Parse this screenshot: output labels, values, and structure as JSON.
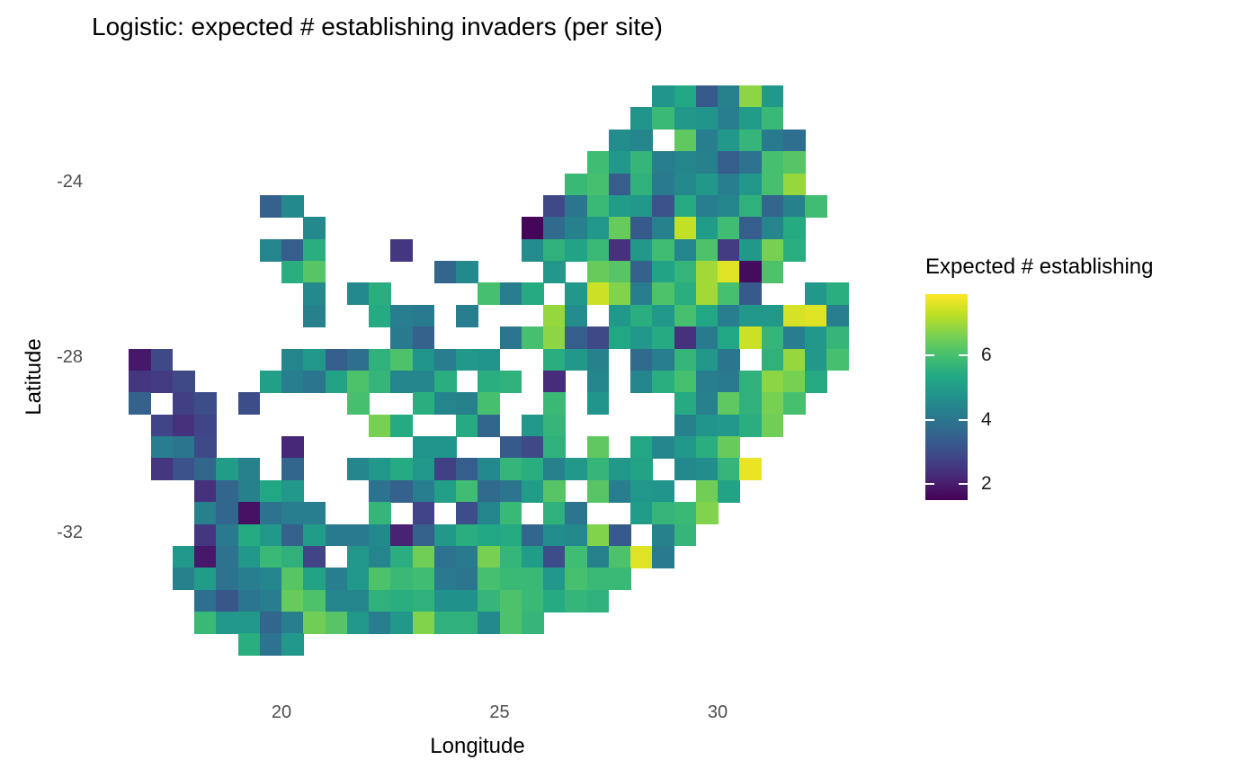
{
  "colors": {
    "background": "#ffffff",
    "title_text": "#000000",
    "axis_title_text": "#000000",
    "tick_text": "#4d4d4d",
    "legend_text": "#1a1a1a"
  },
  "chart_data": {
    "type": "heatmap",
    "title": "Logistic: expected # establishing invaders (per site)",
    "xlabel": "Longitude",
    "ylabel": "Latitude",
    "x_ticks": [
      20,
      25,
      30
    ],
    "y_ticks": [
      -24,
      -28,
      -32
    ],
    "x_range": [
      16.0,
      33.5
    ],
    "y_range": [
      -35.0,
      -21.8
    ],
    "grid": {
      "lon_left": 16.0,
      "lat_top": -21.8,
      "cell_deg": 0.5,
      "ncols": 34,
      "nrows": 26
    },
    "legend": {
      "title": "Expected # establishing",
      "ticks": [
        2,
        4,
        6
      ],
      "domain": [
        1.5,
        7.9
      ],
      "position": "right"
    },
    "colormap": {
      "name": "viridis",
      "stops": [
        "#440154",
        "#482475",
        "#414487",
        "#355f8d",
        "#2a788e",
        "#21918c",
        "#22a884",
        "#44bf70",
        "#7ad151",
        "#bddf26",
        "#fde725"
      ]
    },
    "cells": [
      [
        null,
        null,
        null,
        null,
        null,
        null,
        null,
        null,
        null,
        null,
        null,
        null,
        null,
        null,
        null,
        null,
        null,
        null,
        null,
        null,
        null,
        null,
        null,
        null,
        null,
        4.8,
        5.3,
        3.3,
        4.3,
        6.8,
        4.9,
        null,
        null,
        null
      ],
      [
        null,
        null,
        null,
        null,
        null,
        null,
        null,
        null,
        null,
        null,
        null,
        null,
        null,
        null,
        null,
        null,
        null,
        null,
        null,
        null,
        null,
        null,
        null,
        null,
        4.8,
        5.8,
        4.9,
        4.8,
        4.2,
        5.0,
        5.8,
        null,
        null,
        null
      ],
      [
        null,
        null,
        null,
        null,
        null,
        null,
        null,
        null,
        null,
        null,
        null,
        null,
        null,
        null,
        null,
        null,
        null,
        null,
        null,
        null,
        null,
        null,
        null,
        4.6,
        4.4,
        null,
        6.3,
        4.2,
        4.9,
        5.7,
        4.1,
        3.8,
        null,
        null
      ],
      [
        null,
        null,
        null,
        null,
        null,
        null,
        null,
        null,
        null,
        null,
        null,
        null,
        null,
        null,
        null,
        null,
        null,
        null,
        null,
        null,
        null,
        null,
        5.9,
        4.9,
        5.7,
        4.2,
        4.4,
        4.3,
        3.4,
        3.9,
        6.0,
        6.2,
        null,
        null
      ],
      [
        null,
        null,
        null,
        null,
        null,
        null,
        null,
        null,
        null,
        null,
        null,
        null,
        null,
        null,
        null,
        null,
        null,
        null,
        null,
        null,
        null,
        5.8,
        6.0,
        3.4,
        5.6,
        4.1,
        4.5,
        4.9,
        4.2,
        4.9,
        6.0,
        6.9,
        null,
        null
      ],
      [
        null,
        null,
        null,
        null,
        null,
        null,
        null,
        3.5,
        4.5,
        null,
        null,
        null,
        null,
        null,
        null,
        null,
        null,
        null,
        null,
        null,
        2.9,
        4.0,
        5.8,
        5.0,
        4.9,
        3.1,
        5.4,
        4.2,
        4.4,
        5.6,
        3.6,
        4.3,
        5.9,
        null
      ],
      [
        null,
        null,
        null,
        null,
        null,
        null,
        null,
        null,
        null,
        4.5,
        null,
        null,
        null,
        null,
        null,
        null,
        null,
        null,
        null,
        1.6,
        3.7,
        4.3,
        4.9,
        6.4,
        3.3,
        4.3,
        7.3,
        5.0,
        5.9,
        3.4,
        4.4,
        5.4,
        null,
        null
      ],
      [
        null,
        null,
        null,
        null,
        null,
        null,
        null,
        4.4,
        3.4,
        5.5,
        null,
        null,
        null,
        2.5,
        null,
        null,
        null,
        null,
        null,
        4.6,
        5.6,
        5.2,
        5.8,
        2.4,
        4.9,
        5.9,
        4.4,
        6.1,
        2.6,
        4.9,
        6.6,
        5.5,
        null,
        null
      ],
      [
        null,
        null,
        null,
        null,
        null,
        null,
        null,
        null,
        5.5,
        6.2,
        null,
        null,
        null,
        null,
        null,
        3.6,
        4.5,
        null,
        null,
        null,
        4.9,
        null,
        6.4,
        6.2,
        3.5,
        5.2,
        5.7,
        7.0,
        7.6,
        1.7,
        6.1,
        null,
        null,
        null
      ],
      [
        null,
        null,
        null,
        null,
        null,
        null,
        null,
        null,
        null,
        4.5,
        null,
        4.5,
        5.5,
        null,
        null,
        null,
        null,
        6.0,
        4.2,
        5.4,
        null,
        4.9,
        7.4,
        6.7,
        4.2,
        6.1,
        5.5,
        7.0,
        6.0,
        3.3,
        null,
        null,
        4.9,
        5.5
      ],
      [
        null,
        null,
        null,
        null,
        null,
        null,
        null,
        null,
        null,
        4.3,
        null,
        null,
        5.4,
        4.2,
        4.1,
        null,
        4.2,
        null,
        null,
        null,
        6.9,
        4.6,
        null,
        4.9,
        5.5,
        4.9,
        6.0,
        5.3,
        4.2,
        4.9,
        4.9,
        7.5,
        7.6,
        4.2
      ],
      [
        null,
        null,
        null,
        null,
        null,
        null,
        null,
        null,
        null,
        null,
        null,
        null,
        null,
        4.1,
        3.5,
        null,
        null,
        null,
        4.0,
        6.0,
        6.8,
        3.4,
        2.9,
        5.3,
        4.9,
        5.4,
        2.4,
        4.1,
        5.3,
        7.4,
        5.7,
        4.2,
        4.9,
        5.7
      ],
      [
        null,
        1.9,
        2.9,
        null,
        null,
        null,
        null,
        null,
        4.4,
        4.9,
        3.4,
        3.8,
        5.6,
        6.1,
        4.8,
        4.2,
        4.9,
        4.8,
        null,
        null,
        5.5,
        4.9,
        4.3,
        null,
        3.7,
        4.2,
        5.7,
        4.9,
        4.0,
        null,
        5.6,
        6.9,
        4.9,
        6.0
      ],
      [
        null,
        2.5,
        2.6,
        2.9,
        null,
        null,
        null,
        5.1,
        4.2,
        4.0,
        5.2,
        6.1,
        5.7,
        4.4,
        4.4,
        5.5,
        null,
        5.5,
        5.6,
        null,
        2.3,
        null,
        4.4,
        null,
        4.4,
        5.5,
        6.0,
        4.2,
        4.1,
        5.6,
        6.8,
        6.6,
        5.4,
        null
      ],
      [
        null,
        3.5,
        null,
        2.7,
        3.0,
        null,
        3.0,
        null,
        null,
        null,
        null,
        6.0,
        null,
        null,
        5.5,
        4.4,
        4.3,
        6.0,
        null,
        null,
        5.8,
        null,
        4.8,
        null,
        null,
        null,
        5.4,
        4.3,
        6.3,
        5.6,
        6.6,
        6.0,
        null,
        null
      ],
      [
        null,
        null,
        2.8,
        2.4,
        2.8,
        null,
        null,
        null,
        null,
        null,
        null,
        null,
        6.6,
        5.4,
        null,
        null,
        5.4,
        3.6,
        null,
        4.9,
        5.7,
        null,
        null,
        null,
        null,
        null,
        4.3,
        4.8,
        4.9,
        5.5,
        6.5,
        null,
        null,
        null
      ],
      [
        null,
        null,
        4.2,
        4.0,
        2.9,
        null,
        null,
        null,
        2.2,
        null,
        null,
        null,
        null,
        null,
        4.8,
        4.8,
        null,
        null,
        3.3,
        2.9,
        5.6,
        null,
        6.3,
        null,
        5.3,
        4.4,
        4.9,
        5.5,
        6.4,
        null,
        null,
        null,
        null,
        null
      ],
      [
        null,
        null,
        2.5,
        3.1,
        3.6,
        5.0,
        4.3,
        null,
        3.6,
        null,
        null,
        4.4,
        4.9,
        5.4,
        4.9,
        2.7,
        3.4,
        4.5,
        5.7,
        5.5,
        4.3,
        4.9,
        5.7,
        4.9,
        5.2,
        null,
        4.5,
        4.6,
        5.7,
        7.7,
        null,
        null,
        null,
        null
      ],
      [
        null,
        null,
        null,
        null,
        2.4,
        3.6,
        4.3,
        5.3,
        4.9,
        null,
        null,
        null,
        3.9,
        3.5,
        4.2,
        5.1,
        5.9,
        3.7,
        4.0,
        5.0,
        6.2,
        null,
        6.2,
        4.2,
        4.9,
        4.8,
        null,
        6.5,
        5.2,
        null,
        null,
        null,
        null,
        null
      ],
      [
        null,
        null,
        null,
        null,
        4.3,
        3.6,
        1.8,
        3.9,
        4.2,
        4.2,
        null,
        null,
        5.7,
        null,
        2.8,
        null,
        3.0,
        4.4,
        5.8,
        null,
        5.6,
        4.0,
        null,
        null,
        5.0,
        5.7,
        5.8,
        6.7,
        null,
        null,
        null,
        null,
        null,
        null
      ],
      [
        null,
        null,
        null,
        null,
        2.5,
        4.1,
        5.4,
        4.9,
        3.5,
        5.0,
        4.1,
        4.1,
        4.5,
        2.1,
        3.5,
        4.9,
        5.5,
        5.3,
        5.4,
        3.6,
        4.6,
        4.5,
        6.7,
        3.3,
        null,
        4.3,
        5.7,
        null,
        null,
        null,
        null,
        null,
        null,
        null
      ],
      [
        null,
        null,
        null,
        4.9,
        1.9,
        3.9,
        4.9,
        5.8,
        5.6,
        2.8,
        null,
        4.9,
        4.4,
        5.5,
        6.5,
        3.9,
        4.1,
        6.6,
        5.7,
        5.0,
        3.0,
        5.9,
        4.3,
        6.1,
        7.6,
        4.1,
        null,
        null,
        null,
        null,
        null,
        null,
        null,
        null
      ],
      [
        null,
        null,
        null,
        4.3,
        5.0,
        3.9,
        4.2,
        4.4,
        6.2,
        5.2,
        4.2,
        4.9,
        6.1,
        5.8,
        5.9,
        4.1,
        4.0,
        6.0,
        5.8,
        5.8,
        4.9,
        6.0,
        5.8,
        5.8,
        null,
        null,
        null,
        null,
        null,
        null,
        null,
        null,
        null,
        null
      ],
      [
        null,
        null,
        null,
        null,
        3.8,
        3.2,
        4.0,
        4.2,
        6.4,
        6.1,
        4.4,
        4.4,
        5.6,
        5.5,
        5.6,
        4.7,
        4.7,
        5.7,
        6.1,
        5.8,
        5.4,
        5.7,
        5.6,
        null,
        null,
        null,
        null,
        null,
        null,
        null,
        null,
        null,
        null,
        null
      ],
      [
        null,
        null,
        null,
        null,
        5.8,
        4.9,
        4.9,
        3.6,
        4.2,
        6.5,
        6.2,
        4.9,
        4.2,
        4.9,
        6.7,
        5.6,
        5.6,
        4.5,
        6.1,
        5.7,
        null,
        null,
        null,
        null,
        null,
        null,
        null,
        null,
        null,
        null,
        null,
        null,
        null,
        null
      ],
      [
        null,
        null,
        null,
        null,
        null,
        null,
        5.5,
        3.9,
        4.9,
        null,
        null,
        null,
        null,
        null,
        null,
        null,
        null,
        null,
        null,
        null,
        null,
        null,
        null,
        null,
        null,
        null,
        null,
        null,
        null,
        null,
        null,
        null,
        null,
        null
      ]
    ]
  }
}
